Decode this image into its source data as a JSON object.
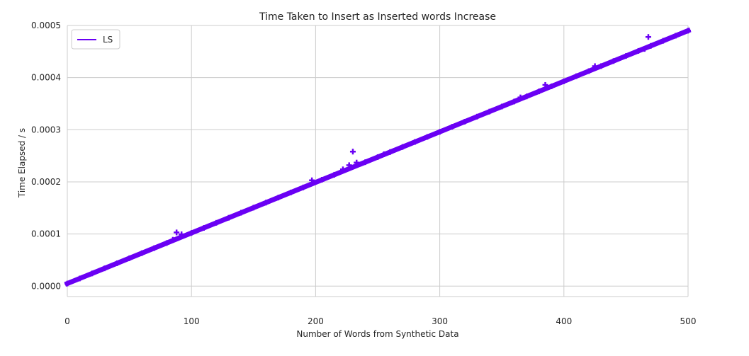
{
  "chart_data": {
    "type": "scatter",
    "title": "Time Taken to Insert as Inserted words Increase",
    "xlabel": "Number of Words from Synthetic Data",
    "ylabel": "Time Elapsed / s",
    "xlim": [
      0,
      500
    ],
    "ylim": [
      -2e-05,
      0.0005
    ],
    "x_ticks": [
      "0",
      "100",
      "200",
      "300",
      "400",
      "500"
    ],
    "y_ticks": [
      "0.0000",
      "0.0001",
      "0.0002",
      "0.0003",
      "0.0004",
      "0.0005"
    ],
    "grid": true,
    "legend_position": "top-left",
    "marker": "plus",
    "colors": {
      "series": "#6a00f4",
      "grid": "#cccccc",
      "axis": "#cccccc"
    },
    "series": [
      {
        "name": "LS",
        "trend": {
          "slope": 9.7e-07,
          "intercept": 5e-06
        },
        "x": [
          0,
          10,
          20,
          30,
          40,
          50,
          60,
          70,
          80,
          85,
          88,
          92,
          100,
          110,
          120,
          130,
          140,
          150,
          160,
          170,
          180,
          190,
          197,
          205,
          215,
          222,
          227,
          230,
          233,
          240,
          250,
          255,
          260,
          270,
          280,
          290,
          300,
          310,
          320,
          330,
          340,
          350,
          360,
          365,
          370,
          380,
          385,
          390,
          400,
          410,
          420,
          425,
          430,
          440,
          450,
          460,
          465,
          468,
          470,
          480,
          490,
          500
        ],
        "y": [
          5e-06,
          1.47e-05,
          2.44e-05,
          3.41e-05,
          4.38e-05,
          5.35e-05,
          6.32e-05,
          7.29e-05,
          8.26e-05,
          8.9e-05,
          0.000103,
          9.94e-05,
          0.000102,
          0.0001117,
          0.0001214,
          0.0001311,
          0.0001408,
          0.0001505,
          0.0001602,
          0.0001699,
          0.0001796,
          0.0001893,
          0.000203,
          0.000204,
          0.0002136,
          0.000224,
          0.000232,
          0.000258,
          0.000237,
          0.0002378,
          0.0002475,
          0.000253,
          0.0002572,
          0.0002669,
          0.0002766,
          0.0002863,
          0.000296,
          0.0003057,
          0.0003154,
          0.0003251,
          0.0003348,
          0.0003445,
          0.0003542,
          0.000362,
          0.0003639,
          0.0003736,
          0.000386,
          0.0003833,
          0.000393,
          0.0004027,
          0.0004124,
          0.000422,
          0.0004221,
          0.0004318,
          0.0004415,
          0.0004512,
          0.000455,
          0.000478,
          0.0004609,
          0.0004706,
          0.0004803,
          0.00049
        ]
      }
    ]
  }
}
